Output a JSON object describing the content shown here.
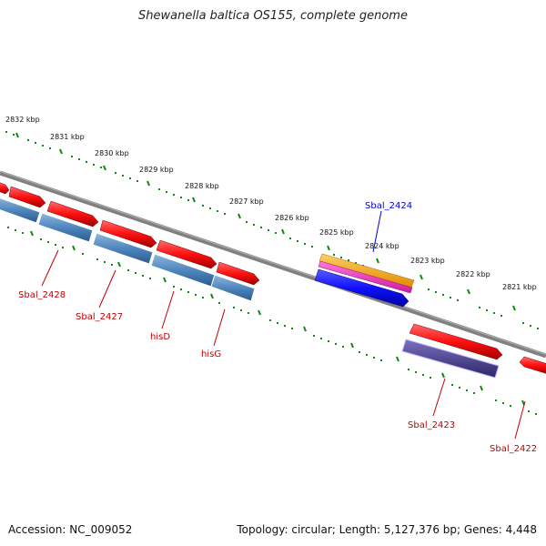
{
  "title": "Shewanella baltica OS155, complete genome",
  "accession": "Accession: NC_009052",
  "summary": "Topology: circular; Length: 5,127,376 bp; Genes: 4,448",
  "colors": {
    "backbone": "#808080",
    "tick": "#118811",
    "forward_gene": "#ff1a1a",
    "reverse_gene": "#4f86be",
    "highlight_blue": "#1a1aff",
    "orange": "#ffa500",
    "magenta": "#ff33cc",
    "purple": "#4a3f8f",
    "label_red": "#c00000",
    "label_blue": "#0000cc"
  },
  "kbp_labels": [
    "2832 kbp",
    "2831 kbp",
    "2830 kbp",
    "2829 kbp",
    "2828 kbp",
    "2827 kbp",
    "2826 kbp",
    "2825 kbp",
    "2824 kbp",
    "2823 kbp",
    "2822 kbp",
    "2821 kbp"
  ],
  "gene_labels": [
    "Sbal_2424",
    "Sbal_2428",
    "Sbal_2427",
    "hisD",
    "hisG",
    "Sbal_2423",
    "Sbal_2422"
  ]
}
